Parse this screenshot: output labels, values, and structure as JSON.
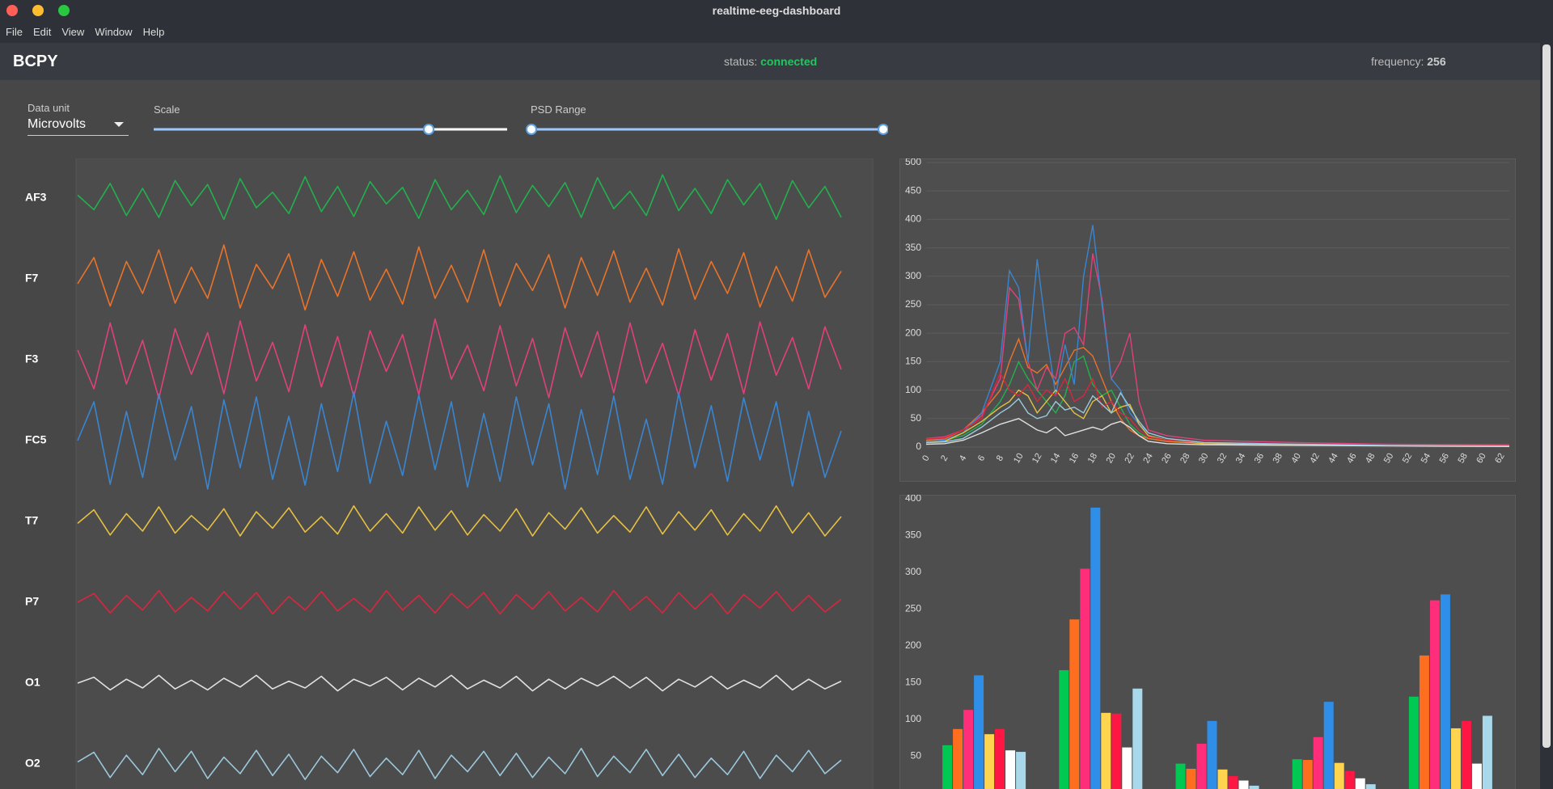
{
  "window": {
    "title": "realtime-eeg-dashboard",
    "menu": [
      "File",
      "Edit",
      "View",
      "Window",
      "Help"
    ]
  },
  "header": {
    "app_name": "BCPY",
    "status_label": "status:",
    "status_value": "connected",
    "frequency_label": "frequency:",
    "frequency_value": 256
  },
  "controls": {
    "data_unit_label": "Data unit",
    "data_unit_value": "Microvolts",
    "scale_label": "Scale",
    "psd_range_label": "PSD Range"
  },
  "chart_data": [
    {
      "type": "line",
      "series": [
        {
          "name": "AF3",
          "color": "#22b14c",
          "values": [
            3,
            -12,
            15,
            -18,
            10,
            -20,
            18,
            -8,
            14,
            -22,
            20,
            -10,
            6,
            -16,
            22,
            -14,
            12,
            -19,
            17,
            -6,
            11,
            -21,
            19,
            -12,
            8,
            -17,
            23,
            -15,
            13,
            -9,
            16,
            -20,
            21,
            -11,
            7,
            -18,
            24,
            -13,
            10,
            -16,
            19,
            -7,
            15,
            -22,
            18,
            -10,
            12,
            -20
          ]
        },
        {
          "name": "F7",
          "color": "#e8732a",
          "values": [
            -5,
            22,
            -28,
            18,
            -15,
            30,
            -25,
            12,
            -20,
            35,
            -30,
            15,
            -10,
            26,
            -32,
            20,
            -18,
            28,
            -22,
            10,
            -26,
            33,
            -20,
            14,
            -24,
            30,
            -28,
            16,
            -12,
            25,
            -30,
            22,
            -17,
            29,
            -24,
            11,
            -27,
            31,
            -21,
            18,
            -15,
            27,
            -29,
            13,
            -23,
            30,
            -19,
            8
          ]
        },
        {
          "name": "F3",
          "color": "#e0417a",
          "values": [
            10,
            -30,
            38,
            -25,
            20,
            -40,
            32,
            -15,
            28,
            -35,
            40,
            -22,
            18,
            -33,
            36,
            -28,
            24,
            -38,
            30,
            -12,
            26,
            -36,
            42,
            -20,
            15,
            -32,
            35,
            -27,
            22,
            -39,
            33,
            -18,
            29,
            -34,
            38,
            -24,
            17,
            -37,
            31,
            -21,
            27,
            -35,
            39,
            -16,
            23,
            -30,
            34,
            -10
          ]
        },
        {
          "name": "FC5",
          "color": "#3a85d0",
          "values": [
            0,
            40,
            -45,
            30,
            -38,
            48,
            -20,
            35,
            -50,
            42,
            -28,
            45,
            -40,
            25,
            -46,
            38,
            -32,
            50,
            -44,
            20,
            -36,
            47,
            -30,
            40,
            -48,
            28,
            -42,
            45,
            -25,
            38,
            -50,
            32,
            -35,
            46,
            -40,
            22,
            -45,
            49,
            -28,
            36,
            -42,
            44,
            -20,
            40,
            -47,
            30,
            -38,
            10
          ]
        },
        {
          "name": "T7",
          "color": "#e6c042",
          "values": [
            -2,
            12,
            -14,
            8,
            -10,
            15,
            -12,
            6,
            -9,
            13,
            -15,
            10,
            -7,
            14,
            -11,
            5,
            -13,
            16,
            -10,
            8,
            -12,
            15,
            -9,
            11,
            -14,
            7,
            -10,
            13,
            -15,
            9,
            -8,
            14,
            -12,
            6,
            -11,
            15,
            -13,
            10,
            -9,
            12,
            -14,
            8,
            -10,
            16,
            -12,
            9,
            -15,
            5
          ]
        },
        {
          "name": "P7",
          "color": "#d9263f",
          "values": [
            0,
            9,
            -11,
            7,
            -8,
            12,
            -10,
            5,
            -9,
            11,
            -7,
            10,
            -12,
            6,
            -8,
            11,
            -9,
            4,
            -10,
            12,
            -8,
            7,
            -11,
            9,
            -6,
            10,
            -12,
            8,
            -7,
            11,
            -9,
            5,
            -10,
            12,
            -8,
            6,
            -11,
            10,
            -7,
            9,
            -12,
            8,
            -6,
            11,
            -9,
            7,
            -10,
            3
          ]
        },
        {
          "name": "O1",
          "color": "#e0e0e0",
          "values": [
            0,
            6,
            -7,
            4,
            -5,
            8,
            -6,
            3,
            -7,
            5,
            -4,
            8,
            -6,
            2,
            -5,
            7,
            -8,
            4,
            -3,
            6,
            -7,
            5,
            -4,
            8,
            -6,
            3,
            -5,
            7,
            -8,
            4,
            -6,
            5,
            -3,
            7,
            -5,
            6,
            -8,
            4,
            -4,
            7,
            -6,
            3,
            -5,
            8,
            -7,
            4,
            -6,
            2
          ]
        },
        {
          "name": "O2",
          "color": "#9cc8dc",
          "values": [
            2,
            12,
            -14,
            9,
            -11,
            16,
            -8,
            13,
            -15,
            7,
            -10,
            14,
            -12,
            10,
            -16,
            8,
            -9,
            15,
            -13,
            6,
            -11,
            14,
            -15,
            9,
            -8,
            13,
            -12,
            11,
            -14,
            7,
            -10,
            16,
            -13,
            8,
            -9,
            15,
            -12,
            10,
            -14,
            6,
            -11,
            13,
            -15,
            9,
            -8,
            14,
            -10,
            4
          ]
        }
      ]
    },
    {
      "type": "line",
      "x": [
        0,
        2,
        4,
        6,
        8,
        9,
        10,
        11,
        12,
        13,
        14,
        15,
        16,
        17,
        18,
        19,
        20,
        21,
        22,
        23,
        24,
        26,
        30,
        40,
        50,
        63
      ],
      "xlim": [
        0,
        63
      ],
      "xticks": [
        0,
        2,
        4,
        6,
        8,
        10,
        12,
        14,
        16,
        18,
        20,
        22,
        24,
        26,
        28,
        30,
        32,
        34,
        36,
        38,
        40,
        42,
        44,
        46,
        48,
        50,
        52,
        54,
        56,
        58,
        60,
        62
      ],
      "ylim": [
        0,
        500
      ],
      "yticks": [
        0,
        50,
        100,
        150,
        200,
        250,
        300,
        350,
        400,
        450,
        500
      ],
      "grid": true,
      "series": [
        {
          "color": "#22b14c",
          "values": [
            10,
            12,
            20,
            40,
            80,
            110,
            150,
            120,
            100,
            80,
            60,
            90,
            150,
            160,
            110,
            90,
            100,
            70,
            40,
            25,
            15,
            10,
            6,
            4,
            3,
            2
          ]
        },
        {
          "color": "#e8732a",
          "values": [
            12,
            14,
            30,
            60,
            100,
            150,
            190,
            140,
            130,
            145,
            110,
            140,
            170,
            175,
            160,
            120,
            80,
            50,
            30,
            20,
            15,
            10,
            6,
            4,
            3,
            2
          ]
        },
        {
          "color": "#e0417a",
          "values": [
            15,
            18,
            30,
            55,
            120,
            280,
            260,
            150,
            100,
            140,
            120,
            200,
            210,
            180,
            340,
            260,
            120,
            150,
            200,
            80,
            30,
            20,
            12,
            8,
            5,
            4
          ]
        },
        {
          "color": "#3a85d0",
          "values": [
            10,
            12,
            25,
            60,
            150,
            310,
            280,
            150,
            330,
            200,
            90,
            180,
            110,
            300,
            390,
            250,
            120,
            100,
            60,
            40,
            25,
            15,
            8,
            5,
            3,
            2
          ]
        },
        {
          "color": "#e6c042",
          "values": [
            8,
            10,
            25,
            45,
            70,
            80,
            100,
            90,
            60,
            80,
            100,
            80,
            60,
            50,
            80,
            90,
            60,
            70,
            75,
            40,
            20,
            12,
            6,
            4,
            3,
            2
          ]
        },
        {
          "color": "#d9263f",
          "values": [
            14,
            16,
            30,
            50,
            130,
            100,
            90,
            110,
            80,
            100,
            90,
            120,
            80,
            90,
            120,
            70,
            80,
            60,
            50,
            30,
            18,
            12,
            8,
            5,
            4,
            3
          ]
        },
        {
          "color": "#e0e0e0",
          "values": [
            5,
            6,
            12,
            25,
            40,
            45,
            50,
            40,
            30,
            25,
            35,
            20,
            25,
            30,
            35,
            30,
            40,
            45,
            35,
            20,
            10,
            6,
            4,
            3,
            2,
            1
          ]
        },
        {
          "color": "#9cc8dc",
          "values": [
            8,
            9,
            15,
            35,
            60,
            70,
            85,
            60,
            50,
            55,
            80,
            65,
            70,
            60,
            90,
            75,
            60,
            95,
            70,
            45,
            25,
            15,
            8,
            5,
            3,
            2
          ]
        }
      ]
    },
    {
      "type": "bar",
      "categories": [
        null,
        null,
        null,
        null,
        null
      ],
      "ylim": [
        0,
        400
      ],
      "yticks": [
        50,
        100,
        150,
        200,
        250,
        300,
        350,
        400
      ],
      "series": [
        {
          "color": "#00c853",
          "values": [
            65,
            167,
            40,
            46,
            131
          ]
        },
        {
          "color": "#ff6d1f",
          "values": [
            87,
            236,
            33,
            45,
            187
          ]
        },
        {
          "color": "#ff2d7a",
          "values": [
            113,
            305,
            67,
            76,
            262
          ]
        },
        {
          "color": "#2f8fe8",
          "values": [
            160,
            388,
            98,
            124,
            270
          ]
        },
        {
          "color": "#ffd54f",
          "values": [
            80,
            109,
            32,
            41,
            88
          ]
        },
        {
          "color": "#ff1744",
          "values": [
            87,
            108,
            23,
            30,
            98
          ]
        },
        {
          "color": "#ffffff",
          "values": [
            58,
            62,
            17,
            20,
            40
          ]
        },
        {
          "color": "#a8d8ea",
          "values": [
            56,
            142,
            10,
            12,
            105
          ]
        }
      ]
    }
  ]
}
